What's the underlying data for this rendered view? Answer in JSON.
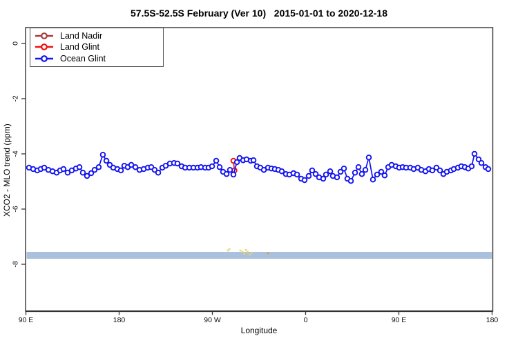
{
  "title": "57.5S-52.5S February (Ver 10)   2015-01-01 to 2020-12-18",
  "chart_data": {
    "type": "line",
    "title": "57.5S-52.5S February (Ver 10)   2015-01-01 to 2020-12-18",
    "xlabel": "Longitude",
    "ylabel": "XCO2 - MLO trend (ppm)",
    "x_axis": {
      "tick_labels": [
        "90 E",
        "180",
        "90 W",
        "0",
        "90 E",
        "180"
      ],
      "tick_deg": [
        0,
        90,
        180,
        270,
        360,
        450
      ],
      "span_deg": 450,
      "note": "longitude increases eastward from 90E, wrapping through 180, 90W, 0, 90E to 180"
    },
    "y_axis": {
      "tick_labels": [
        "0",
        "-2",
        "-4",
        "-6",
        "-8"
      ],
      "ticks": [
        0,
        -2,
        -4,
        -6,
        -8
      ],
      "lim": [
        -9.7,
        0.58
      ],
      "grid": false
    },
    "legend_position": "top-left",
    "legend": [
      {
        "label": "Land Nadir",
        "color": "#A63C3C"
      },
      {
        "label": "Land Glint",
        "color": "#EE1111"
      },
      {
        "label": "Ocean Glint",
        "color": "#1313F0"
      }
    ],
    "series": [
      {
        "name": "Land Nadir",
        "color": "#A63C3C",
        "x_deg": [],
        "values": []
      },
      {
        "name": "Land Glint",
        "color": "#EE1111",
        "x_deg": [
          200.3,
          201.3
        ],
        "values": [
          -4.25,
          -4.6
        ]
      },
      {
        "name": "Ocean Glint",
        "color": "#1313F0",
        "x_deg": [
          3,
          7,
          11,
          14.3,
          17.7,
          21.7,
          25.7,
          29.7,
          33,
          36.3,
          40.3,
          44.3,
          48.3,
          51.7,
          55,
          59,
          63,
          66.3,
          70.3,
          74.3,
          77.7,
          81,
          84.3,
          88.3,
          91.7,
          95,
          98.3,
          101.7,
          105.7,
          109.7,
          113.7,
          117.7,
          121,
          124.3,
          127.7,
          131.7,
          135,
          139,
          143,
          146.3,
          150.3,
          153.7,
          157.7,
          161.7,
          165.7,
          169,
          173,
          176.3,
          179.7,
          183.7,
          187,
          190.3,
          193.7,
          197,
          200.3,
          203.7,
          206.3,
          209.7,
          213,
          217,
          219.7,
          223,
          226.3,
          229.7,
          233.7,
          237,
          240.3,
          243.7,
          247,
          251,
          254.3,
          258.3,
          261.7,
          265.7,
          269,
          273,
          276.3,
          279.7,
          283,
          287,
          289.7,
          293.7,
          296.3,
          300.3,
          303.7,
          307,
          310.3,
          313.7,
          317.7,
          321,
          324.3,
          327.7,
          331,
          335,
          339,
          343,
          346.3,
          349.7,
          353,
          357,
          360.3,
          363.7,
          367,
          371,
          374.3,
          378.3,
          381.7,
          385.7,
          389,
          392.3,
          396.3,
          399.7,
          403,
          406.3,
          410.3,
          413,
          417,
          420.3,
          423.7,
          427,
          430.3,
          433,
          437,
          439.7,
          443.7,
          446.3
        ],
        "values": [
          -4.5,
          -4.55,
          -4.6,
          -4.55,
          -4.5,
          -4.58,
          -4.63,
          -4.68,
          -4.6,
          -4.55,
          -4.68,
          -4.6,
          -4.53,
          -4.48,
          -4.68,
          -4.8,
          -4.7,
          -4.58,
          -4.48,
          -4.03,
          -4.25,
          -4.4,
          -4.5,
          -4.55,
          -4.6,
          -4.43,
          -4.48,
          -4.4,
          -4.48,
          -4.58,
          -4.55,
          -4.5,
          -4.48,
          -4.58,
          -4.68,
          -4.5,
          -4.43,
          -4.35,
          -4.33,
          -4.35,
          -4.45,
          -4.5,
          -4.5,
          -4.5,
          -4.5,
          -4.48,
          -4.5,
          -4.5,
          -4.45,
          -4.25,
          -4.48,
          -4.65,
          -4.73,
          -4.58,
          -4.75,
          -4.3,
          -4.15,
          -4.23,
          -4.2,
          -4.25,
          -4.23,
          -4.45,
          -4.5,
          -4.58,
          -4.5,
          -4.53,
          -4.55,
          -4.58,
          -4.63,
          -4.73,
          -4.75,
          -4.7,
          -4.75,
          -4.9,
          -4.95,
          -4.8,
          -4.6,
          -4.73,
          -4.85,
          -4.9,
          -4.75,
          -4.63,
          -4.8,
          -4.85,
          -4.65,
          -4.53,
          -4.9,
          -4.98,
          -4.68,
          -4.48,
          -4.73,
          -4.58,
          -4.13,
          -4.93,
          -4.75,
          -4.65,
          -4.78,
          -4.48,
          -4.4,
          -4.45,
          -4.5,
          -4.48,
          -4.5,
          -4.5,
          -4.55,
          -4.5,
          -4.58,
          -4.63,
          -4.55,
          -4.6,
          -4.5,
          -4.6,
          -4.73,
          -4.65,
          -4.6,
          -4.55,
          -4.5,
          -4.45,
          -4.48,
          -4.53,
          -4.45,
          -4.0,
          -4.2,
          -4.33,
          -4.48,
          -4.55
        ]
      }
    ],
    "band": {
      "v_top": -7.55,
      "v_bottom": -7.8,
      "color": "#A9C0DE"
    },
    "specks": [
      {
        "x_deg": 195,
        "v": -7.5,
        "color": "#EFD269"
      },
      {
        "x_deg": 196.5,
        "v": -7.45,
        "color": "#EFD269"
      },
      {
        "x_deg": 207,
        "v": -7.5,
        "color": "#EFD269"
      },
      {
        "x_deg": 209,
        "v": -7.55,
        "color": "#EFD269"
      },
      {
        "x_deg": 211,
        "v": -7.62,
        "color": "#EFD269"
      },
      {
        "x_deg": 212.5,
        "v": -7.48,
        "color": "#EFD269"
      },
      {
        "x_deg": 214,
        "v": -7.55,
        "color": "#EFD269"
      },
      {
        "x_deg": 216,
        "v": -7.65,
        "color": "#EFD269"
      },
      {
        "x_deg": 218,
        "v": -7.58,
        "color": "#EFD269"
      },
      {
        "x_deg": 233.5,
        "v": -7.6,
        "color": "#E8953F"
      }
    ]
  }
}
